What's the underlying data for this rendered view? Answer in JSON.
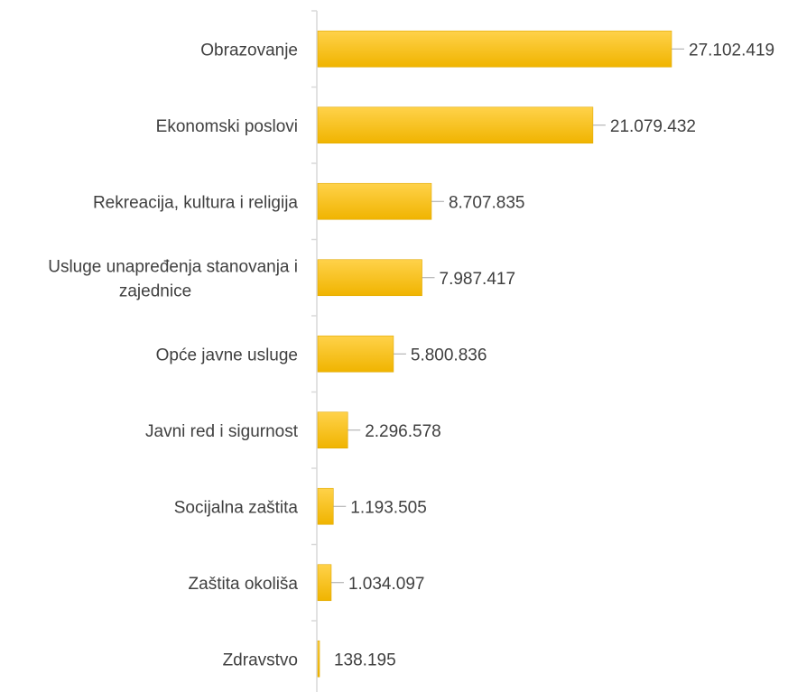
{
  "chart_data": {
    "type": "bar",
    "orientation": "horizontal",
    "categories": [
      "Obrazovanje",
      "Ekonomski poslovi",
      "Rekreacija, kultura i religija",
      "Usluge unapređenja stanovanja i zajednice",
      "Opće javne usluge",
      "Javni red i sigurnost",
      "Socijalna zaštita",
      "Zaštita okoliša",
      "Zdravstvo"
    ],
    "category_lines": [
      [
        "Obrazovanje"
      ],
      [
        "Ekonomski poslovi"
      ],
      [
        "Rekreacija, kultura i religija"
      ],
      [
        "Usluge unapređenja stanovanja i",
        "zajednice"
      ],
      [
        "Opće javne usluge"
      ],
      [
        "Javni red i sigurnost"
      ],
      [
        "Socijalna zaštita"
      ],
      [
        "Zaštita okoliša"
      ],
      [
        "Zdravstvo"
      ]
    ],
    "values": [
      27102419,
      21079432,
      8707835,
      7987417,
      5800836,
      2296578,
      1193505,
      1034097,
      138195
    ],
    "data_labels": [
      "27.102.419",
      "21.079.432",
      "8.707.835",
      "7.987.417",
      "5.800.836",
      "2.296.578",
      "1.193.505",
      "1.034.097",
      "138.195"
    ],
    "title": "",
    "xlabel": "",
    "ylabel": "",
    "xlim": [
      0,
      30000000
    ],
    "grid": false,
    "legend": "none",
    "colors": {
      "bar_top": "#ffd24a",
      "bar_bottom": "#f0b400",
      "bar_edge": "#e0a800",
      "axis": "#d9d9d9",
      "leader": "#a6a6a6",
      "text": "#404040"
    }
  }
}
